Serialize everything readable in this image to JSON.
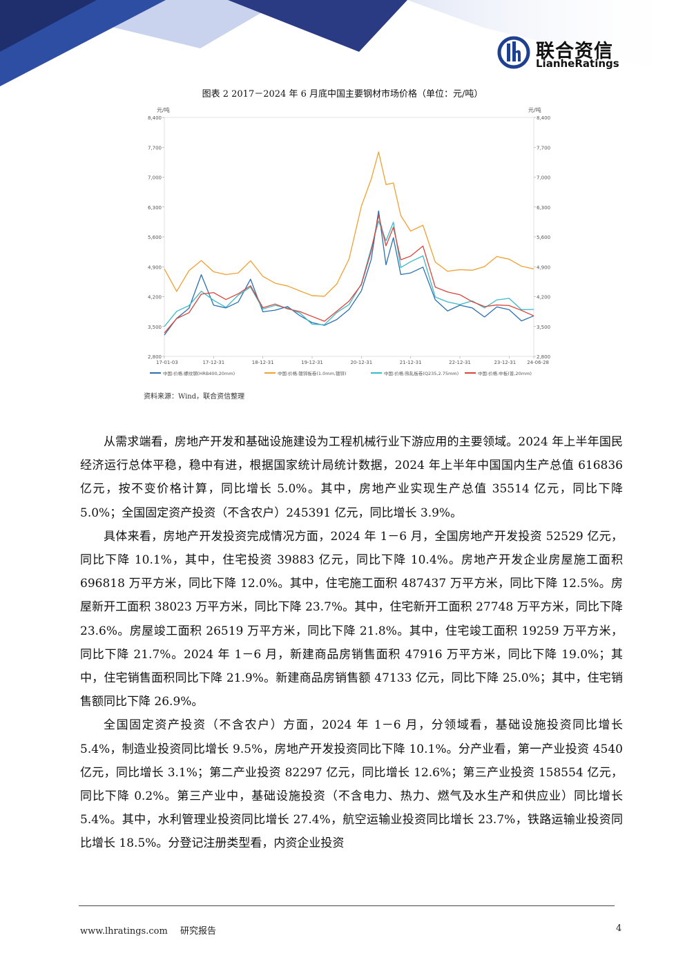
{
  "header": {
    "brand_cn": "联合资信",
    "brand_en": "LianheRatings",
    "colors": {
      "navy": "#1f2f6e",
      "blue": "#2d4ea3",
      "light": "#c9d3ee"
    }
  },
  "figure": {
    "title": "图表 2   2017－2024 年 6 月底中国主要钢材市场价格（单位：元/吨）",
    "source": "资料来源：Wind，联合资信整理"
  },
  "chart_data": {
    "type": "line",
    "unit_left": "元/吨",
    "unit_right": "元/吨",
    "ylim": [
      2800,
      8400
    ],
    "yticks": [
      "8,400",
      "7,700",
      "7,000",
      "6,300",
      "5,600",
      "4,900",
      "4,200",
      "3,500",
      "2,800"
    ],
    "xticks": [
      "17-01-03",
      "17-12-31",
      "18-12-31",
      "19-12-31",
      "20-12-31",
      "21-12-31",
      "22-12-31",
      "23-12-31",
      "24-06-28"
    ],
    "x": [
      2017.0,
      2017.25,
      2017.5,
      2017.75,
      2018.0,
      2018.25,
      2018.5,
      2018.75,
      2019.0,
      2019.25,
      2019.5,
      2019.75,
      2020.0,
      2020.25,
      2020.5,
      2020.75,
      2021.0,
      2021.2,
      2021.35,
      2021.5,
      2021.65,
      2021.8,
      2022.0,
      2022.25,
      2022.5,
      2022.75,
      2023.0,
      2023.25,
      2023.5,
      2023.75,
      2024.0,
      2024.25,
      2024.5
    ],
    "series": [
      {
        "name": "中国:价格:螺纹钢(HRB400,20mm)",
        "color": "#2a6fb0",
        "values": [
          3300,
          3700,
          3900,
          4750,
          4000,
          3900,
          4100,
          4600,
          3800,
          3900,
          3950,
          3800,
          3600,
          3500,
          3700,
          3900,
          4300,
          5100,
          6200,
          4900,
          5600,
          4700,
          4800,
          4900,
          4100,
          3900,
          4000,
          3900,
          3750,
          3950,
          3850,
          3650,
          3750
        ]
      },
      {
        "name": "中国:价格:镀锌板卷(1.0mm,镀锌)",
        "color": "#f0a030",
        "values": [
          4850,
          4350,
          4800,
          5000,
          4800,
          4700,
          4800,
          5050,
          4650,
          4550,
          4450,
          4300,
          4250,
          4200,
          4450,
          5100,
          6300,
          7000,
          7600,
          6800,
          6900,
          6100,
          5700,
          5900,
          5000,
          4750,
          4850,
          4800,
          4950,
          5150,
          5050,
          4950,
          4850
        ]
      },
      {
        "name": "中国:价格:热轧板卷(Q235,2.75mm)",
        "color": "#39b8c8",
        "values": [
          3500,
          3900,
          4000,
          4300,
          4150,
          3950,
          4200,
          4450,
          3900,
          3950,
          3950,
          3800,
          3600,
          3550,
          3800,
          4050,
          4500,
          5300,
          6000,
          5500,
          5900,
          4900,
          5000,
          5200,
          4200,
          4050,
          4050,
          4100,
          3900,
          4150,
          4150,
          3850,
          3900
        ]
      },
      {
        "name": "中国:价格:中板(普,20mm)",
        "color": "#d9433a",
        "values": [
          3350,
          3650,
          3850,
          4250,
          4250,
          4150,
          4250,
          4500,
          3950,
          4000,
          3950,
          3850,
          3700,
          3650,
          3850,
          4050,
          4500,
          5250,
          6150,
          5400,
          5800,
          5100,
          5150,
          5350,
          4450,
          4300,
          4200,
          4100,
          3950,
          4050,
          4000,
          3850,
          3750
        ]
      }
    ]
  },
  "body": {
    "paragraphs": [
      "从需求端看，房地产开发和基础设施建设为工程机械行业下游应用的主要领域。2024 年上半年国民经济运行总体平稳，稳中有进，根据国家统计局统计数据，2024 年上半年中国国内生产总值 616836 亿元，按不变价格计算，同比增长 5.0%。其中，房地产业实现生产总值 35514 亿元，同比下降 5.0%；全国固定资产投资（不含农户）245391 亿元，同比增长 3.9%。",
      "具体来看，房地产开发投资完成情况方面，2024 年 1－6 月，全国房地产开发投资 52529 亿元，同比下降 10.1%，其中，住宅投资 39883 亿元，同比下降 10.4%。房地产开发企业房屋施工面积 696818 万平方米，同比下降 12.0%。其中，住宅施工面积 487437 万平方米，同比下降 12.5%。房屋新开工面积 38023 万平方米，同比下降 23.7%。其中，住宅新开工面积 27748 万平方米，同比下降 23.6%。房屋竣工面积 26519 万平方米，同比下降 21.8%。其中，住宅竣工面积 19259 万平方米，同比下降 21.7%。2024 年 1－6 月，新建商品房销售面积 47916 万平方米，同比下降 19.0%；其中，住宅销售面积同比下降 21.9%。新建商品房销售额 47133 亿元，同比下降 25.0%；其中，住宅销售额同比下降 26.9%。",
      "全国固定资产投资（不含农户）方面，2024 年 1－6 月，分领域看，基础设施投资同比增长 5.4%，制造业投资同比增长 9.5%，房地产开发投资同比下降 10.1%。分产业看，第一产业投资 4540 亿元，同比增长 3.1%；第二产业投资 82297 亿元，同比增长 12.6%；第三产业投资 158554 亿元，同比下降 0.2%。第三产业中，基础设施投资（不含电力、热力、燃气及水生产和供应业）同比增长 5.4%。其中，水利管理业投资同比增长 27.4%，航空运输业投资同比增长 23.7%，铁路运输业投资同比增长 18.5%。分登记注册类型看，内资企业投资"
    ]
  },
  "footer": {
    "website": "www.lhratings.com",
    "doc_type": "研究报告",
    "page_number": "4"
  }
}
